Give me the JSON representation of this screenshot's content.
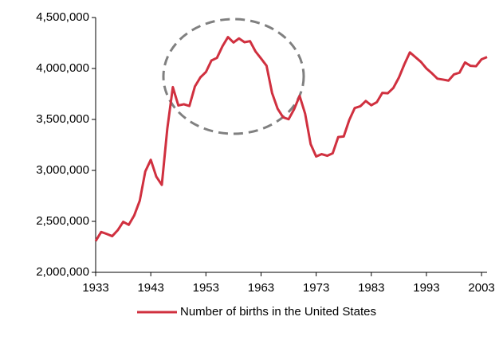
{
  "chart_data": {
    "type": "line",
    "x": [
      1933,
      1934,
      1935,
      1936,
      1937,
      1938,
      1939,
      1940,
      1941,
      1942,
      1943,
      1944,
      1945,
      1946,
      1947,
      1948,
      1949,
      1950,
      1951,
      1952,
      1953,
      1954,
      1955,
      1956,
      1957,
      1958,
      1959,
      1960,
      1961,
      1962,
      1963,
      1964,
      1965,
      1966,
      1967,
      1968,
      1969,
      1970,
      1971,
      1972,
      1973,
      1974,
      1975,
      1976,
      1977,
      1978,
      1979,
      1980,
      1981,
      1982,
      1983,
      1984,
      1985,
      1986,
      1987,
      1988,
      1989,
      1990,
      1991,
      1992,
      1993,
      1994,
      1995,
      1996,
      1997,
      1998,
      1999,
      2000,
      2001,
      2002,
      2003,
      2004
    ],
    "series": [
      {
        "name": "Number of births in the United States",
        "color": "#d0303f",
        "values": [
          2307000,
          2396000,
          2377000,
          2355000,
          2413000,
          2496000,
          2466000,
          2559000,
          2703000,
          2989000,
          3104000,
          2939000,
          2858000,
          3411000,
          3817000,
          3637000,
          3649000,
          3632000,
          3823000,
          3913000,
          3965000,
          4078000,
          4104000,
          4218000,
          4308000,
          4255000,
          4295000,
          4258000,
          4268000,
          4167000,
          4098000,
          4027000,
          3760000,
          3606000,
          3521000,
          3502000,
          3600000,
          3731000,
          3556000,
          3258000,
          3137000,
          3160000,
          3144000,
          3168000,
          3327000,
          3333000,
          3494000,
          3612000,
          3629000,
          3681000,
          3639000,
          3669000,
          3761000,
          3757000,
          3809000,
          3910000,
          4041000,
          4158000,
          4111000,
          4065000,
          4000000,
          3953000,
          3900000,
          3891000,
          3881000,
          3942000,
          3959000,
          4059000,
          4026000,
          4022000,
          4090000,
          4112000
        ]
      }
    ],
    "xlim": [
      1933,
      2004
    ],
    "xticks": [
      1933,
      1943,
      1953,
      1963,
      1973,
      1983,
      1993,
      2003
    ],
    "ylim": [
      2000000,
      4500000
    ],
    "yticks": [
      {
        "value": 2000000,
        "label": "2,000,000"
      },
      {
        "value": 2500000,
        "label": "2,500,000"
      },
      {
        "value": 3000000,
        "label": "3,000,000"
      },
      {
        "value": 3500000,
        "label": "3,500,000"
      },
      {
        "value": 4000000,
        "label": "4,000,000"
      },
      {
        "value": 4500000,
        "label": "4,500,000"
      }
    ],
    "grid": false,
    "legend": "bottom"
  }
}
